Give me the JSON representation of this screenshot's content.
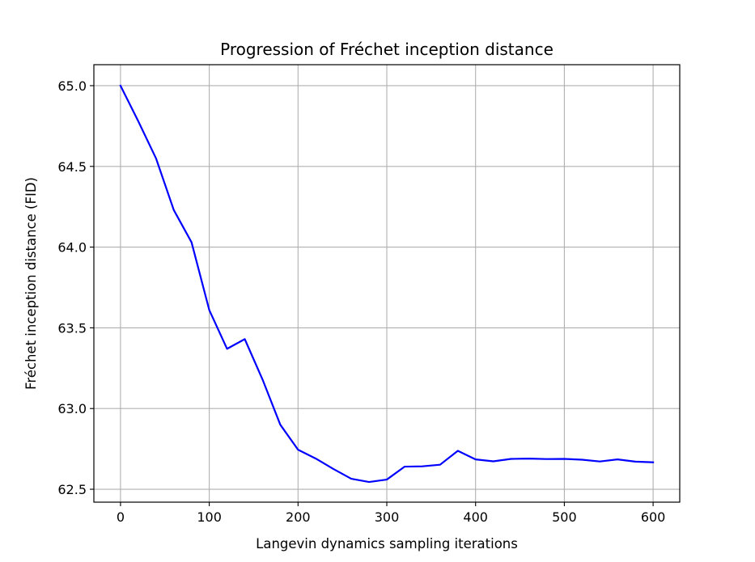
{
  "chart_data": {
    "type": "line",
    "title": "Progression of Fréchet inception distance",
    "xlabel": "Langevin dynamics sampling iterations",
    "ylabel": "Fréchet inception distance (FID)",
    "xlim": [
      -30,
      630
    ],
    "ylim": [
      62.42,
      65.13
    ],
    "xticks": [
      0,
      100,
      200,
      300,
      400,
      500,
      600
    ],
    "yticks": [
      62.5,
      63.0,
      63.5,
      64.0,
      64.5,
      65.0
    ],
    "xtick_labels": [
      "0",
      "100",
      "200",
      "300",
      "400",
      "500",
      "600"
    ],
    "ytick_labels": [
      "62.5",
      "63.0",
      "63.5",
      "64.0",
      "64.5",
      "65.0"
    ],
    "grid": true,
    "series": [
      {
        "color": "#0000ff",
        "x": [
          0,
          20,
          40,
          60,
          80,
          100,
          120,
          140,
          160,
          180,
          200,
          220,
          240,
          260,
          280,
          300,
          320,
          340,
          360,
          380,
          400,
          420,
          440,
          460,
          480,
          500,
          520,
          540,
          560,
          580,
          600
        ],
        "y": [
          65.0,
          64.78,
          64.55,
          64.23,
          64.03,
          63.61,
          63.37,
          63.43,
          63.18,
          62.9,
          62.745,
          62.69,
          62.625,
          62.565,
          62.545,
          62.56,
          62.64,
          62.642,
          62.652,
          62.738,
          62.685,
          62.673,
          62.688,
          62.69,
          62.687,
          62.688,
          62.683,
          62.672,
          62.685,
          62.671,
          62.667
        ]
      }
    ]
  }
}
